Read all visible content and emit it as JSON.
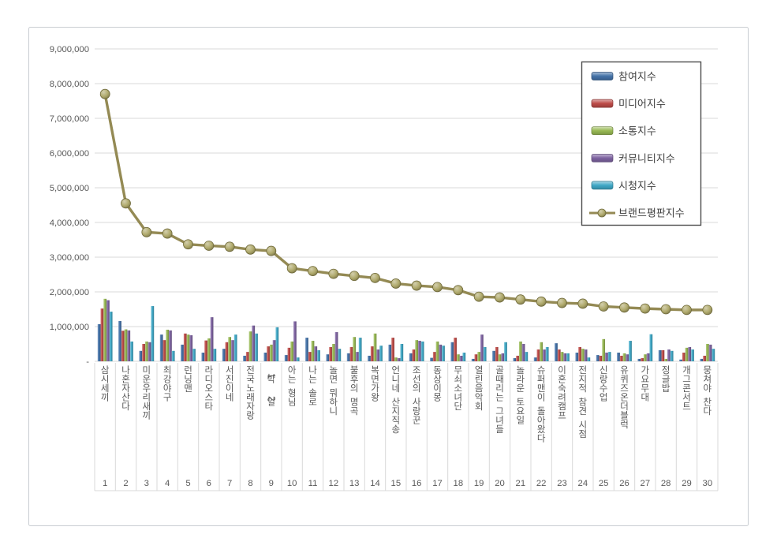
{
  "chart_data": {
    "type": "bar",
    "title": "",
    "xlabel": "",
    "ylabel": "",
    "ylim": [
      0,
      9000000
    ],
    "ytick_interval": 1000000,
    "ytick_labels": [
      "-",
      "1,000,000",
      "2,000,000",
      "3,000,000",
      "4,000,000",
      "5,000,000",
      "6,000,000",
      "7,000,000",
      "8,000,000",
      "9,000,000"
    ],
    "grid": true,
    "legend_position": "top-right",
    "categories": [
      "삼시세끼",
      "나혼자산다",
      "미운우리새끼",
      "최강야구",
      "런닝맨",
      "라디오스타",
      "서진이네",
      "전국노래자랑",
      "1박 2일",
      "아는 형님",
      "나는 솔로",
      "놀면 뭐하니",
      "불후의 명곡",
      "복면가왕",
      "언니네 산지직송",
      "조선의 사랑꾼",
      "동상이몽",
      "무쇠소녀단",
      "열린음악회",
      "골때리는 그녀들",
      "놀라운 토요일",
      "슈퍼맨이 돌아왔다",
      "이혼숙려캠프",
      "전지적 참견 시점",
      "신랑수업",
      "유퀴즈온더블럭",
      "가요무대",
      "정글밥",
      "개그콘서트",
      "뭉쳐야 찬다"
    ],
    "ranks": [
      "1",
      "2",
      "3",
      "4",
      "5",
      "6",
      "7",
      "8",
      "9",
      "10",
      "11",
      "12",
      "13",
      "14",
      "15",
      "16",
      "17",
      "18",
      "19",
      "20",
      "21",
      "22",
      "23",
      "24",
      "25",
      "26",
      "27",
      "28",
      "29",
      "30"
    ],
    "series": [
      {
        "name": "참여지수",
        "color": "#4472A8",
        "values": [
          1070000,
          1160000,
          300000,
          770000,
          480000,
          250000,
          360000,
          160000,
          250000,
          180000,
          680000,
          200000,
          230000,
          160000,
          480000,
          230000,
          100000,
          550000,
          70000,
          300000,
          90000,
          110000,
          520000,
          250000,
          180000,
          250000,
          70000,
          320000,
          50000,
          70000
        ]
      },
      {
        "name": "미디어지수",
        "color": "#BE4B48",
        "values": [
          1520000,
          880000,
          500000,
          610000,
          800000,
          600000,
          550000,
          270000,
          430000,
          390000,
          270000,
          410000,
          410000,
          430000,
          680000,
          340000,
          270000,
          680000,
          200000,
          410000,
          160000,
          340000,
          340000,
          410000,
          160000,
          160000,
          90000,
          320000,
          250000,
          160000
        ]
      },
      {
        "name": "소통지수",
        "color": "#98B954",
        "values": [
          1800000,
          920000,
          570000,
          910000,
          770000,
          660000,
          700000,
          860000,
          480000,
          570000,
          590000,
          500000,
          700000,
          800000,
          110000,
          610000,
          570000,
          200000,
          270000,
          200000,
          570000,
          550000,
          270000,
          360000,
          640000,
          230000,
          200000,
          70000,
          390000,
          500000
        ]
      },
      {
        "name": "커뮤니티지수",
        "color": "#7E63A1",
        "values": [
          1760000,
          890000,
          550000,
          890000,
          750000,
          1270000,
          610000,
          1030000,
          610000,
          1150000,
          430000,
          840000,
          270000,
          340000,
          90000,
          590000,
          480000,
          160000,
          770000,
          230000,
          500000,
          340000,
          230000,
          340000,
          250000,
          200000,
          230000,
          340000,
          410000,
          480000
        ]
      },
      {
        "name": "시청지수",
        "color": "#3FA8C6",
        "values": [
          1430000,
          570000,
          1590000,
          300000,
          360000,
          360000,
          770000,
          800000,
          980000,
          110000,
          320000,
          360000,
          680000,
          450000,
          500000,
          570000,
          450000,
          250000,
          410000,
          550000,
          270000,
          410000,
          230000,
          110000,
          270000,
          590000,
          780000,
          300000,
          340000,
          360000
        ]
      }
    ],
    "line_series": {
      "name": "브랜드평판지수",
      "color": "#948A54",
      "marker_fill": "#AFA96B",
      "marker_edge": "#6E6838",
      "values": [
        7700000,
        4550000,
        3720000,
        3680000,
        3370000,
        3330000,
        3300000,
        3220000,
        3180000,
        2680000,
        2600000,
        2520000,
        2460000,
        2400000,
        2240000,
        2180000,
        2140000,
        2050000,
        1860000,
        1840000,
        1780000,
        1720000,
        1680000,
        1660000,
        1580000,
        1550000,
        1520000,
        1500000,
        1480000,
        1480000
      ]
    },
    "legend_entries": [
      "참여지수",
      "미디어지수",
      "소통지수",
      "커뮤니티지수",
      "시청지수",
      "브랜드평판지수"
    ]
  },
  "style_colors": {
    "grid": "#D9D9D9",
    "axis_text": "#595959",
    "frame_border": "#C9CDD2",
    "legend_border": "#4D4D4D",
    "background": "#FFFFFF"
  }
}
